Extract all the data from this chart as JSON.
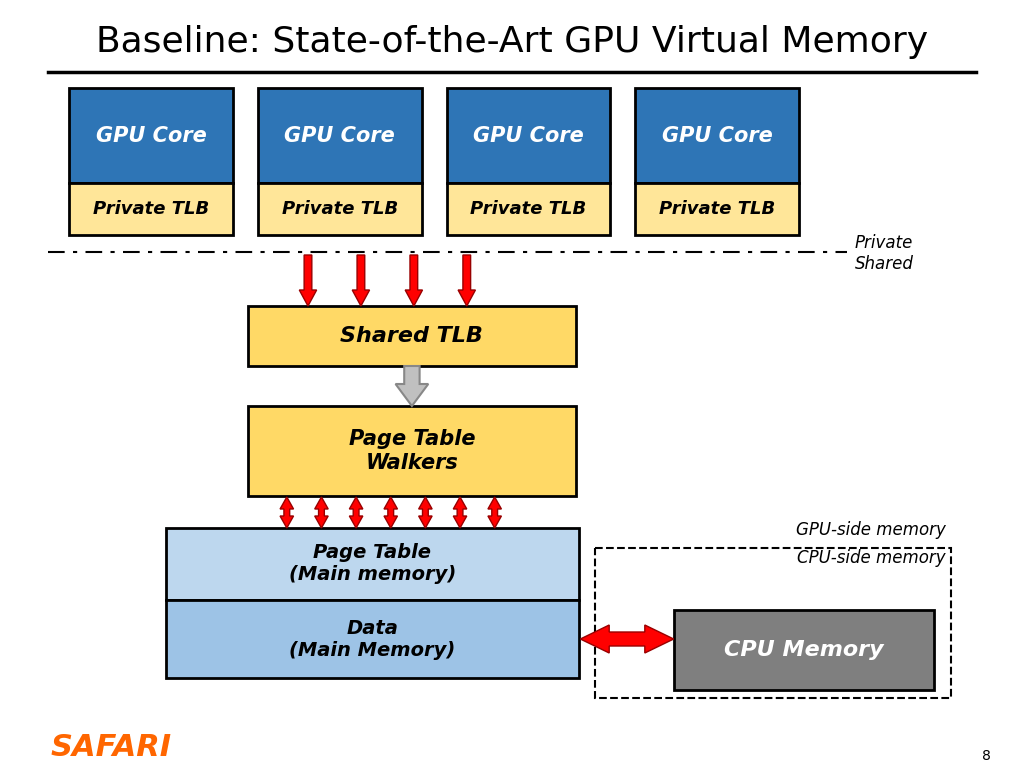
{
  "title": "Baseline: State-of-the-Art GPU Virtual Memory",
  "title_fontsize": 26,
  "bg_color": "#ffffff",
  "gpu_core_color": "#2E75B6",
  "tlb_private_color": "#FFE699",
  "shared_tlb_color": "#FFD966",
  "page_table_walker_color": "#FFD966",
  "main_memory_color": "#BDD7EE",
  "data_memory_color": "#9DC3E6",
  "cpu_memory_color": "#7F7F7F",
  "border_color": "#000000",
  "text_color_white": "#ffffff",
  "text_color_black": "#000000",
  "safari_color": "#FF6600",
  "gpu_cores": [
    "GPU Core",
    "GPU Core",
    "GPU Core",
    "GPU Core"
  ],
  "private_tlb_label": "Private TLB",
  "shared_tlb_label": "Shared TLB",
  "page_table_walker_label": "Page Table\nWalkers",
  "page_table_label": "Page Table\n(Main memory)",
  "data_label": "Data\n(Main Memory)",
  "cpu_memory_label": "CPU Memory",
  "private_label": "Private",
  "shared_label": "Shared",
  "gpu_side_label": "GPU-side memory",
  "cpu_side_label": "CPU-side memory",
  "safari_label": "SAFARI",
  "slide_number": "8"
}
